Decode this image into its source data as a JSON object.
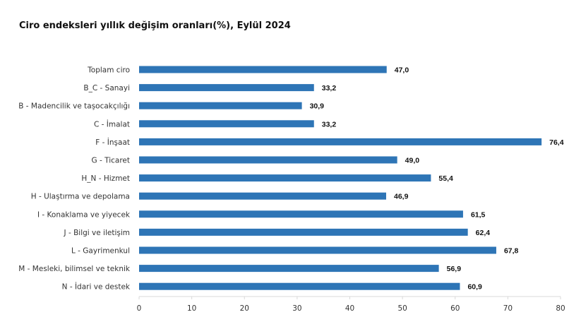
{
  "chart_data": {
    "type": "bar",
    "orientation": "horizontal",
    "title": "Ciro endeksleri yıllık değişim oranları(%), Eylül 2024",
    "categories": [
      "Toplam ciro",
      "B_C - Sanayi",
      "B - Madencilik ve taşocakçılığı",
      "C - İmalat",
      "F - İnşaat",
      "G - Ticaret",
      "H_N - Hizmet",
      "H - Ulaştırma ve depolama",
      "I - Konaklama ve yiyecek",
      "J - Bilgi ve iletişim",
      "L - Gayrimenkul",
      "M - Mesleki, bilimsel ve teknik",
      "N - İdari ve destek"
    ],
    "values": [
      47.0,
      33.2,
      30.9,
      33.2,
      76.4,
      49.0,
      55.4,
      46.9,
      61.5,
      62.4,
      67.8,
      56.9,
      60.9
    ],
    "value_labels": [
      "47,0",
      "33,2",
      "30,9",
      "33,2",
      "76,4",
      "49,0",
      "55,4",
      "46,9",
      "61,5",
      "62,4",
      "67,8",
      "56,9",
      "60,9"
    ],
    "xlim": [
      0,
      80
    ],
    "xticks": [
      "0",
      "10",
      "20",
      "30",
      "40",
      "50",
      "60",
      "70",
      "80"
    ],
    "xlabel": "",
    "ylabel": "",
    "grid": false,
    "legend": "none",
    "colors": {
      "bar": "#2e75b6",
      "axis": "#d9d9d9"
    }
  }
}
